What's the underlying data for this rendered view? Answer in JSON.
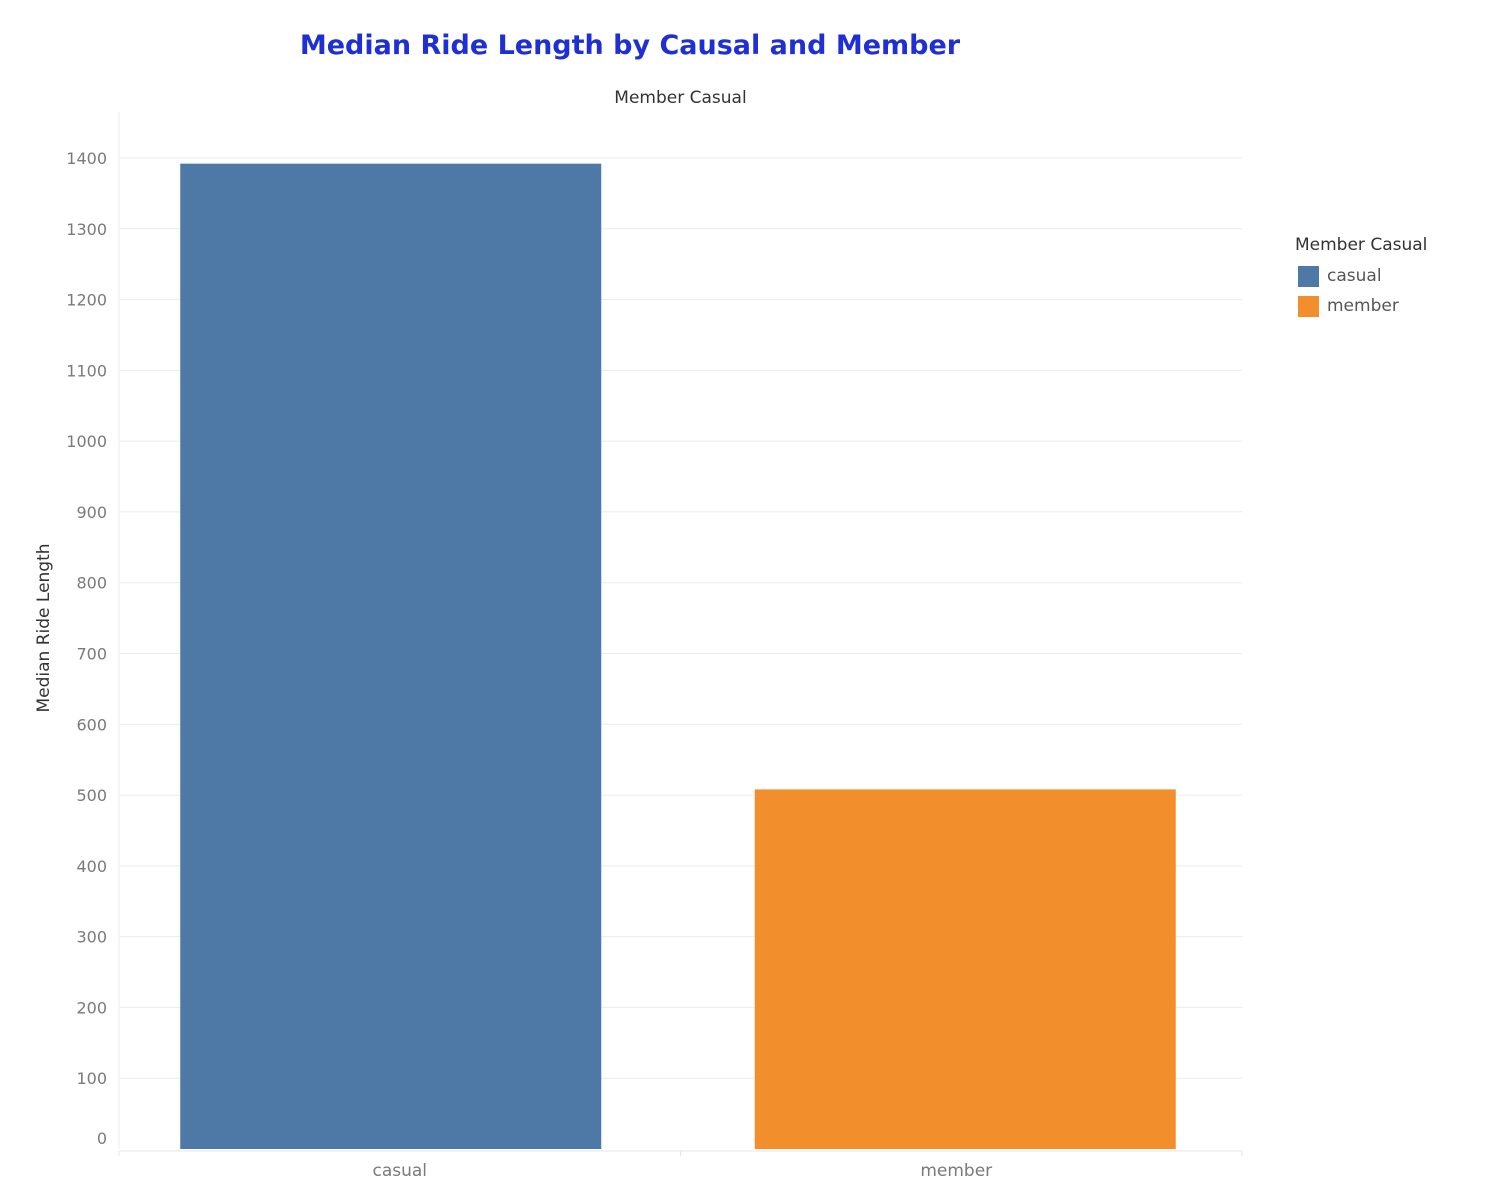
{
  "chart_data": {
    "type": "bar",
    "title": "Median Ride Length by Causal and Member",
    "header_label": "Member Casual",
    "xlabel": "",
    "ylabel": "Median Ride Length",
    "categories": [
      "casual",
      "member"
    ],
    "values": [
      1392,
      508
    ],
    "colors": [
      "#4e79a7",
      "#f28e2b"
    ],
    "ylim": [
      0,
      1400
    ],
    "yticks": [
      0,
      100,
      200,
      300,
      400,
      500,
      600,
      700,
      800,
      900,
      1000,
      1100,
      1200,
      1300,
      1400
    ],
    "grid": true,
    "legend": {
      "title": "Member Casual",
      "placement": "right",
      "items": [
        {
          "label": "casual",
          "color": "#4e79a7"
        },
        {
          "label": "member",
          "color": "#f28e2b"
        }
      ]
    }
  }
}
